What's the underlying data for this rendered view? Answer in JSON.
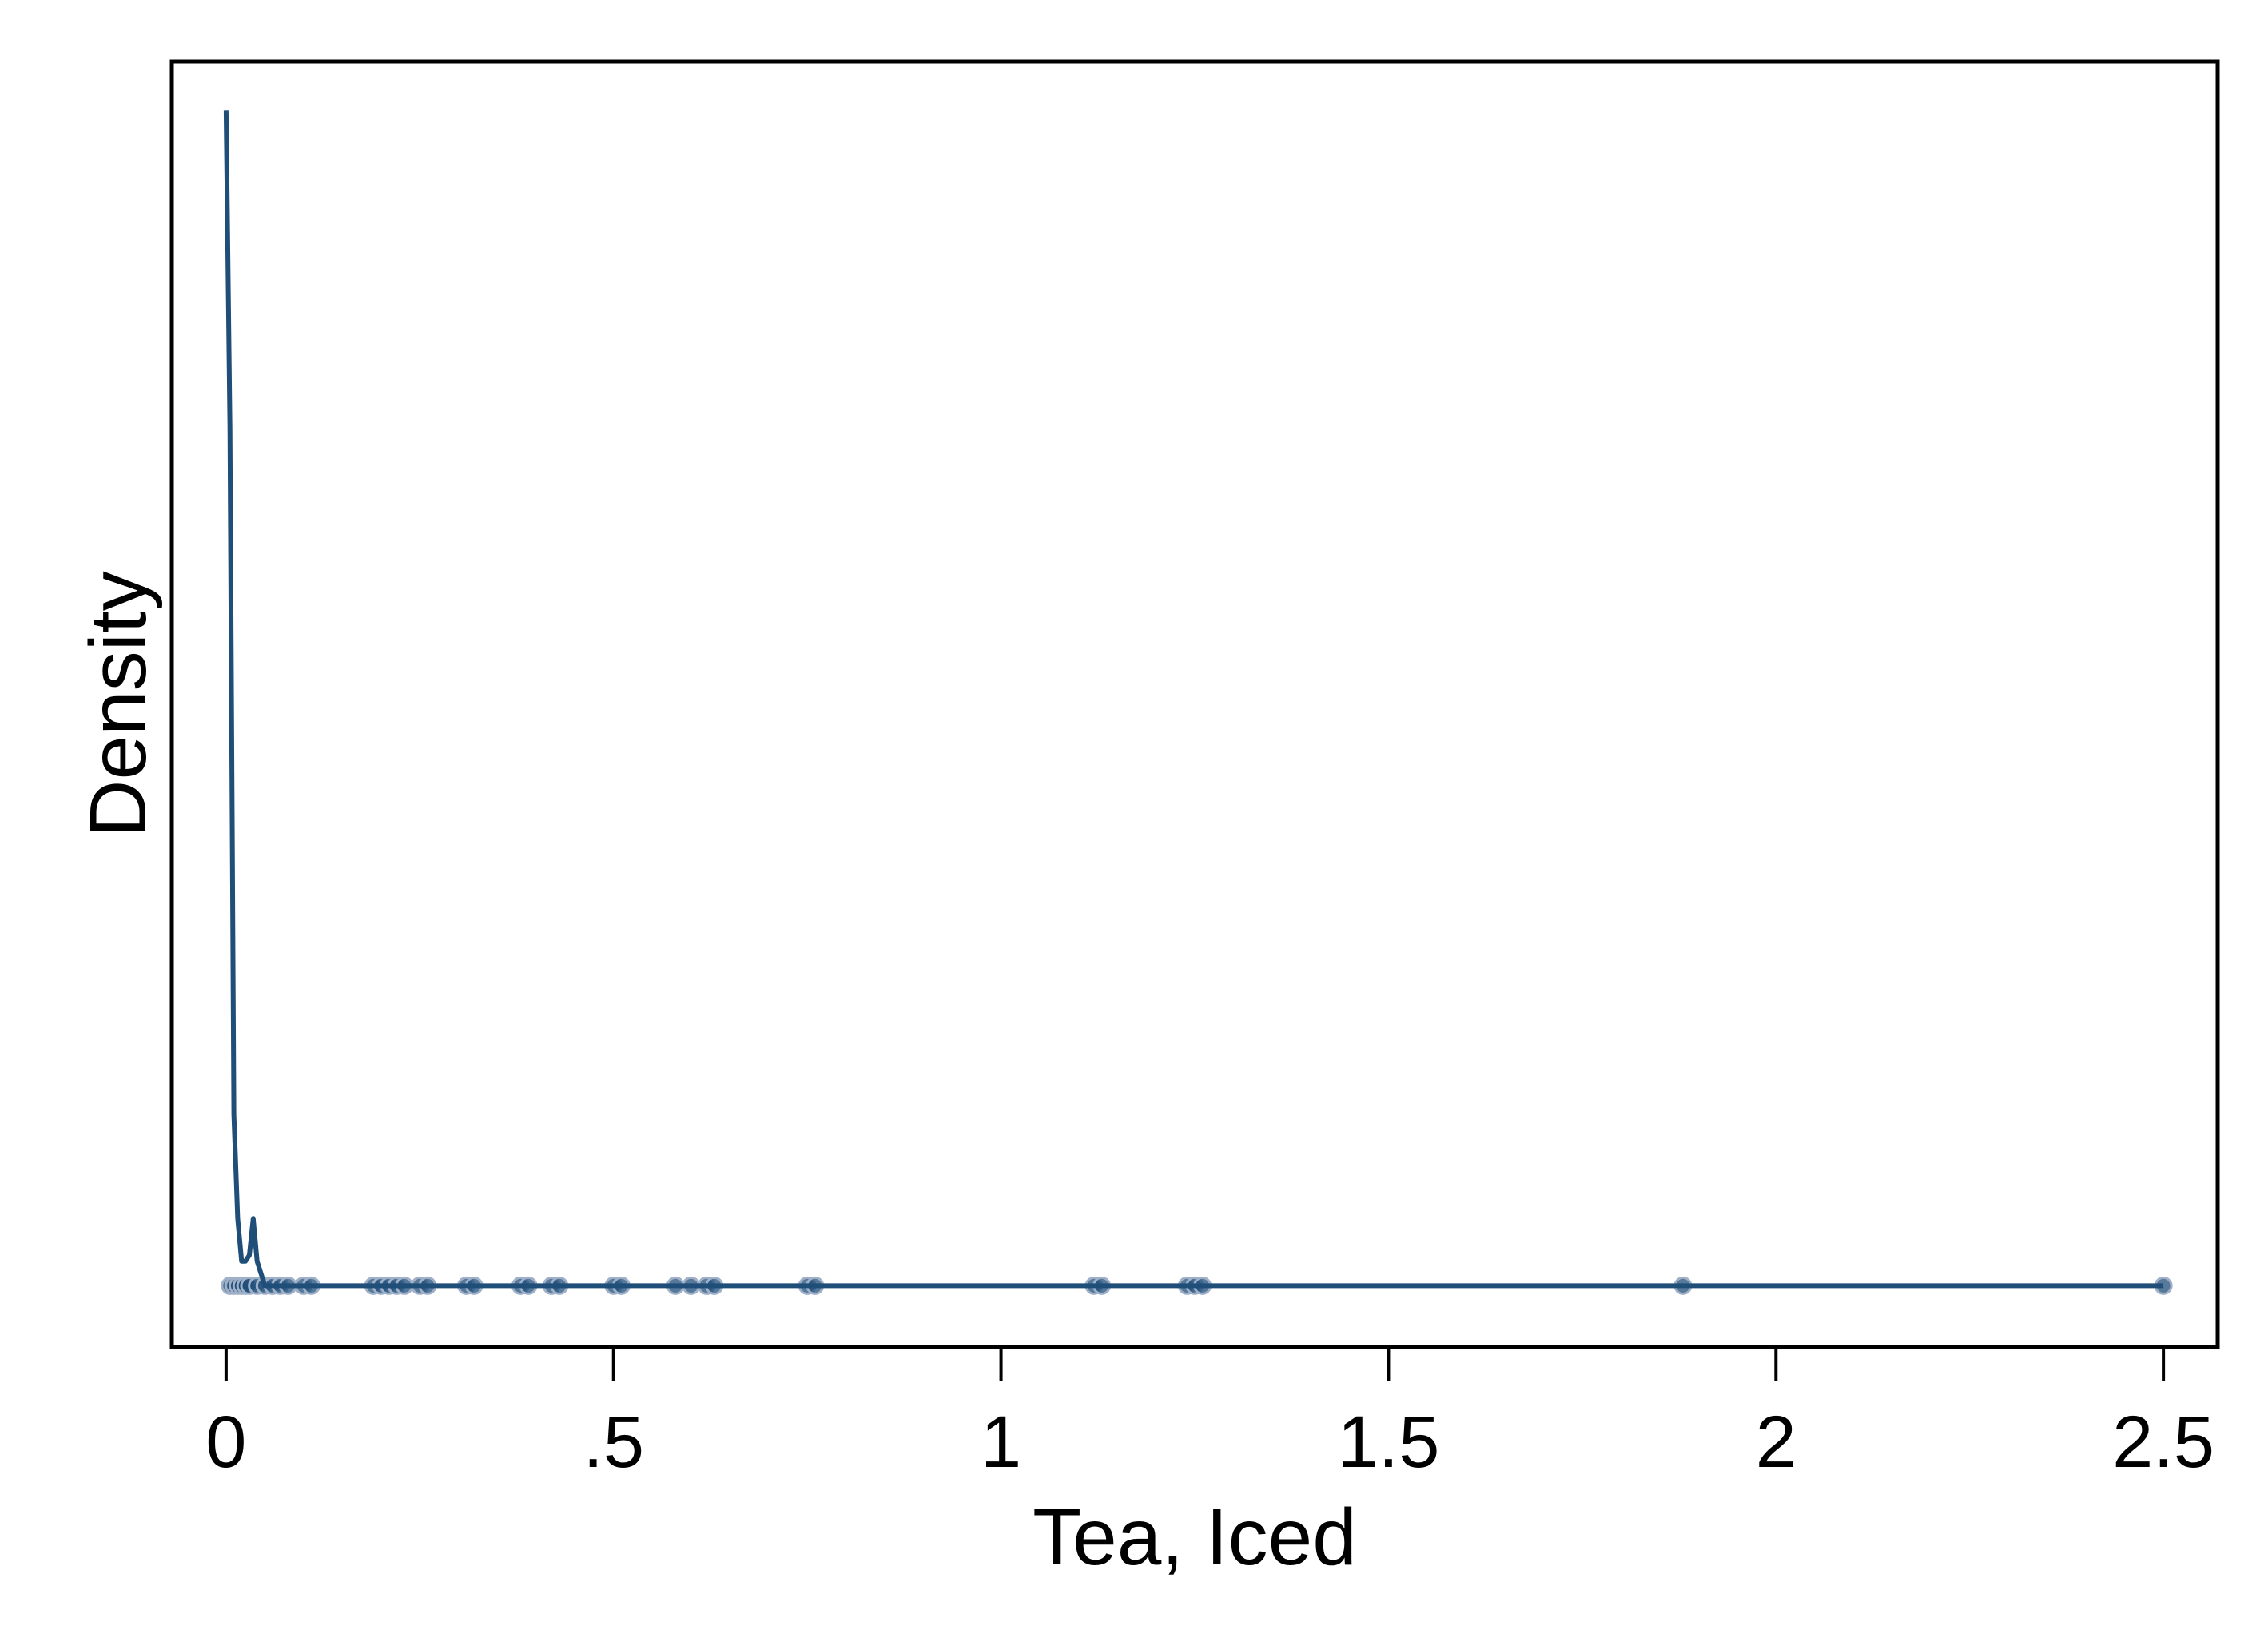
{
  "chart_data": {
    "type": "line",
    "title": "",
    "xlabel": "Tea, Iced",
    "ylabel": "Density",
    "xlim": [
      -0.07,
      2.57
    ],
    "ylim": [
      -0.05,
      1.0
    ],
    "x_ticks": [
      0,
      0.5,
      1,
      1.5,
      2,
      2.5
    ],
    "x_tick_labels": [
      "0",
      ".5",
      "1",
      "1.5",
      "2",
      "2.5"
    ],
    "y_ticks_labeled": false,
    "grid": false,
    "legend": "none",
    "colors": {
      "line": "#1f4e79",
      "points": "#1f4e79",
      "points_light": "#9fb0c8",
      "axis": "#000000"
    },
    "series": [
      {
        "kind": "density-line",
        "x": [
          0.0,
          0.005,
          0.01,
          0.015,
          0.02,
          0.025,
          0.03,
          0.035,
          0.04,
          0.05,
          0.06,
          0.1,
          0.2,
          0.3,
          0.5,
          0.75,
          1.0,
          1.25,
          1.5,
          1.88,
          2.0,
          2.5
        ],
        "y": [
          0.96,
          0.7,
          0.14,
          0.055,
          0.02,
          0.02,
          0.025,
          0.055,
          0.02,
          0.0,
          0.0,
          0.0,
          0.0,
          0.0,
          0.0,
          0.0,
          0.0,
          0.0,
          0.0,
          0.0,
          0.0,
          0.0
        ]
      },
      {
        "kind": "observations",
        "x": [
          0.005,
          0.01,
          0.015,
          0.02,
          0.025,
          0.03,
          0.04,
          0.05,
          0.06,
          0.07,
          0.08,
          0.1,
          0.11,
          0.19,
          0.2,
          0.21,
          0.22,
          0.23,
          0.25,
          0.26,
          0.31,
          0.32,
          0.38,
          0.39,
          0.42,
          0.43,
          0.5,
          0.51,
          0.58,
          0.6,
          0.62,
          0.63,
          0.75,
          0.76,
          1.12,
          1.13,
          1.24,
          1.25,
          1.26,
          1.88,
          2.5
        ],
        "y": [
          0.0,
          0.0,
          0.0,
          0.0,
          0.0,
          0.0,
          0.0,
          0.0,
          0.0,
          0.0,
          0.0,
          0.0,
          0.0,
          0.0,
          0.0,
          0.0,
          0.0,
          0.0,
          0.0,
          0.0,
          0.0,
          0.0,
          0.0,
          0.0,
          0.0,
          0.0,
          0.0,
          0.0,
          0.0,
          0.0,
          0.0,
          0.0,
          0.0,
          0.0,
          0.0,
          0.0,
          0.0,
          0.0,
          0.0,
          0.0,
          0.0
        ]
      }
    ]
  }
}
